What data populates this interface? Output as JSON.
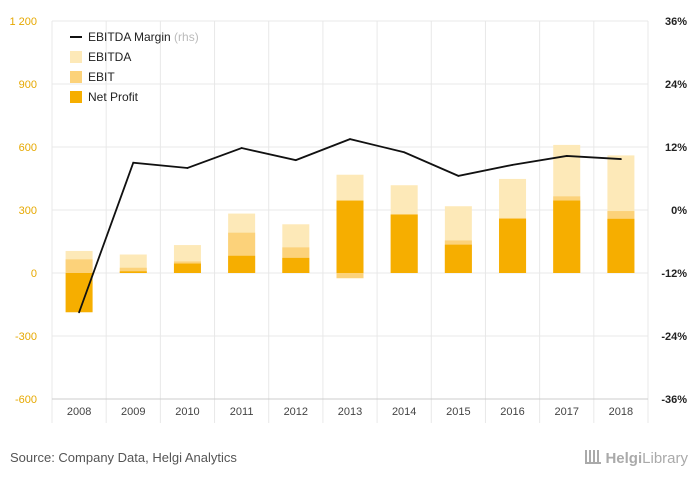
{
  "chart_data": {
    "type": "bar",
    "categories": [
      "2008",
      "2009",
      "2010",
      "2011",
      "2012",
      "2013",
      "2014",
      "2015",
      "2016",
      "2017",
      "2018"
    ],
    "series": [
      {
        "name": "EBITDA",
        "type": "bar",
        "values": [
          105,
          88,
          133,
          283,
          232,
          468,
          418,
          318,
          448,
          610,
          560
        ],
        "color": "#fde9b8"
      },
      {
        "name": "EBIT",
        "type": "bar",
        "values": [
          65,
          25,
          55,
          192,
          122,
          -25,
          280,
          155,
          262,
          365,
          295
        ],
        "color": "#fcd27a"
      },
      {
        "name": "Net Profit",
        "type": "bar",
        "values": [
          -187,
          8,
          45,
          82,
          72,
          345,
          278,
          135,
          258,
          345,
          258
        ],
        "color": "#f6ae00"
      },
      {
        "name": "EBITDA Margin",
        "type": "line",
        "axis": "right",
        "values": [
          -19.5,
          9,
          8,
          11.8,
          9.5,
          13.5,
          11,
          6.5,
          8.6,
          10.3,
          9.7
        ],
        "color": "#111111"
      }
    ],
    "legend_suffix": "(rhs)",
    "ylim_left": [
      -600,
      1200
    ],
    "yticks_left": [
      "-600",
      "-300",
      "0",
      "300",
      "600",
      "900",
      "1 200"
    ],
    "ylim_right": [
      -36,
      36
    ],
    "yticks_right": [
      "-36%",
      "-24%",
      "-12%",
      "0%",
      "12%",
      "24%",
      "36%"
    ],
    "legend_position": "top-left",
    "grid": true
  },
  "footer": {
    "source": "Source: Company Data, Helgi Analytics",
    "logo_text": "Helgi",
    "logo_text_2": "Library"
  }
}
